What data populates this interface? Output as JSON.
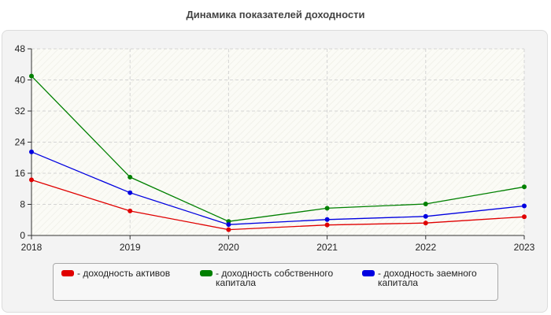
{
  "chart_data": {
    "type": "line",
    "title": "Динамика показателей доходности",
    "xlabel": "",
    "ylabel": "",
    "x": [
      "2018",
      "2019",
      "2020",
      "2021",
      "2022",
      "2023"
    ],
    "ylim": [
      0,
      48
    ],
    "yticks": [
      "0",
      "8",
      "16",
      "24",
      "32",
      "40",
      "48"
    ],
    "grid": true,
    "legend_position": "bottom",
    "series": [
      {
        "name": "- доходность активов",
        "color": "#e00000",
        "values": [
          14.3,
          6.3,
          1.5,
          2.7,
          3.2,
          4.8
        ]
      },
      {
        "name": "- доходность собственного капитала",
        "color": "#008000",
        "values": [
          41,
          15,
          3.6,
          7,
          8.1,
          12.5
        ]
      },
      {
        "name": "- доходность заемного капитала",
        "color": "#0000e0",
        "values": [
          21.5,
          11,
          2.8,
          4.1,
          4.9,
          7.6
        ]
      }
    ]
  }
}
